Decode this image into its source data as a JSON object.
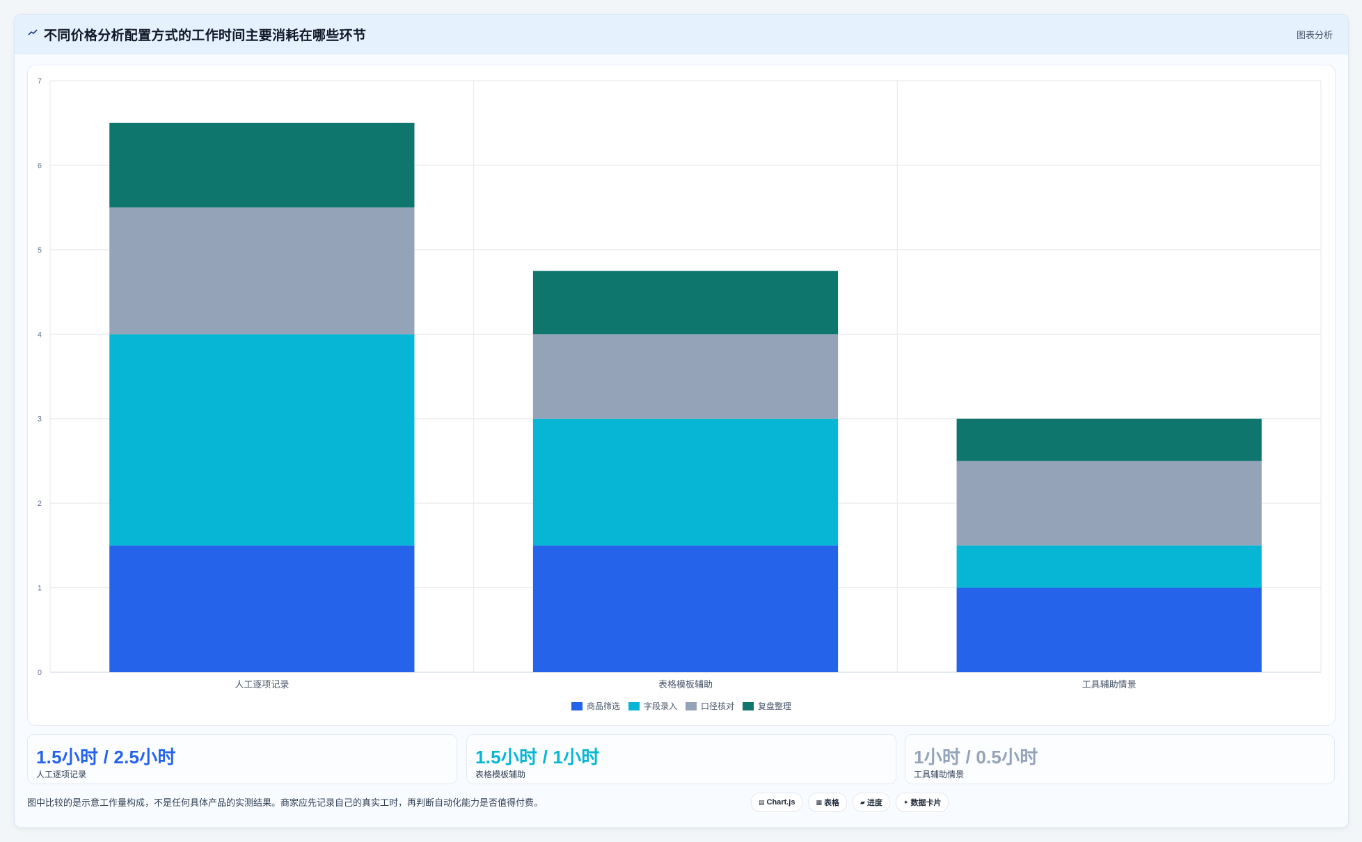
{
  "header": {
    "icon": "chart-trend-icon",
    "title": "不同价格分析配置方式的工作时间主要消耗在哪些环节",
    "tag": "图表分析"
  },
  "chart_data": {
    "type": "bar",
    "stacked": true,
    "categories": [
      "人工逐项记录",
      "表格模板辅助",
      "工具辅助情景"
    ],
    "series": [
      {
        "name": "商品筛选",
        "color": "#2563eb",
        "values": [
          1.5,
          1.5,
          1.0
        ]
      },
      {
        "name": "字段录入",
        "color": "#06b6d4",
        "values": [
          2.5,
          1.5,
          0.5
        ]
      },
      {
        "name": "口径核对",
        "color": "#94a3b8",
        "values": [
          1.5,
          1.0,
          1.0
        ]
      },
      {
        "name": "复盘整理",
        "color": "#0f766e",
        "values": [
          1.0,
          0.75,
          0.5
        ]
      }
    ],
    "ylim": [
      0,
      7
    ],
    "yticks": [
      "0",
      "1",
      "2",
      "3",
      "4",
      "5",
      "6",
      "7"
    ],
    "grid": true,
    "legend_position": "bottom"
  },
  "stats": [
    {
      "value": "1.5小时 / 2.5小时",
      "label": "人工逐项记录",
      "color": "#2563eb"
    },
    {
      "value": "1.5小时 / 1小时",
      "label": "表格模板辅助",
      "color": "#06b6d4"
    },
    {
      "value": "1小时 / 0.5小时",
      "label": "工具辅助情景",
      "color": "#94a3b8"
    }
  ],
  "footnote": "图中比较的是示意工作量构成，不是任何具体产品的实测结果。商家应先记录自己的真实工时，再判断自动化能力是否值得付费。",
  "chips": [
    {
      "icon": "▤",
      "icon_name": "chart-icon",
      "label": "Chart.js"
    },
    {
      "icon": "▦",
      "icon_name": "table-icon",
      "label": "表格"
    },
    {
      "icon": "▰",
      "icon_name": "progress-icon",
      "label": "进度"
    },
    {
      "icon": "✦",
      "icon_name": "sparkle-icon",
      "label": "数据卡片"
    }
  ]
}
